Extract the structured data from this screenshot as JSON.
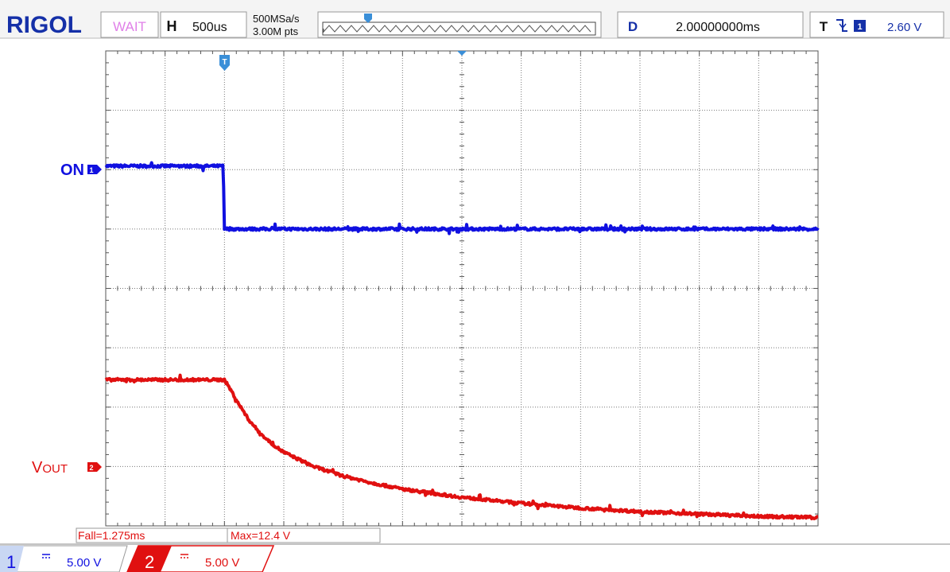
{
  "header": {
    "brand": "RIGOL",
    "run_state": "WAIT",
    "horizontal_key": "H",
    "timebase": "500us",
    "sample_rate": "500MSa/s",
    "memory_depth": "3.00M pts",
    "delay_key": "D",
    "delay": "2.00000000ms",
    "trigger_key": "T",
    "trigger_channel": "1",
    "trigger_level": "2.60 V"
  },
  "measurements": {
    "fall": "Fall=1.275ms",
    "max": "Max=12.4 V"
  },
  "channels": [
    {
      "number": "1",
      "label": "ON",
      "scale": "5.00 V",
      "color": "#1010e0"
    },
    {
      "number": "2",
      "label_main": "V",
      "label_sub": "OUT",
      "scale": "5.00 V",
      "color": "#e01010"
    }
  ],
  "chart_data": {
    "type": "line",
    "title": "",
    "xlabel": "",
    "ylabel": "",
    "grid": true,
    "x_divisions": 12,
    "y_divisions": 8,
    "x_unit": "ms",
    "x_range_ms": [
      -1.0,
      5.0
    ],
    "trigger_time_ms": 0.0,
    "series": [
      {
        "name": "ON",
        "channel": 1,
        "volts_per_div": 5.0,
        "ground_div": 5.0,
        "x_ms": [
          -1.0,
          -0.01,
          0.0,
          5.0
        ],
        "y_v": [
          5.3,
          5.3,
          0.0,
          0.0
        ]
      },
      {
        "name": "VOUT",
        "channel": 2,
        "volts_per_div": 5.0,
        "ground_div": 0.0,
        "x_ms": [
          -1.0,
          0.0,
          0.05,
          0.1,
          0.2,
          0.3,
          0.4,
          0.5,
          0.75,
          1.0,
          1.25,
          1.5,
          2.0,
          2.5,
          3.0,
          3.5,
          4.0,
          4.5,
          5.0
        ],
        "y_v": [
          12.3,
          12.3,
          11.5,
          10.6,
          9.0,
          7.8,
          6.9,
          6.2,
          5.0,
          4.2,
          3.6,
          3.1,
          2.4,
          1.9,
          1.5,
          1.2,
          1.0,
          0.8,
          0.7
        ]
      }
    ]
  }
}
